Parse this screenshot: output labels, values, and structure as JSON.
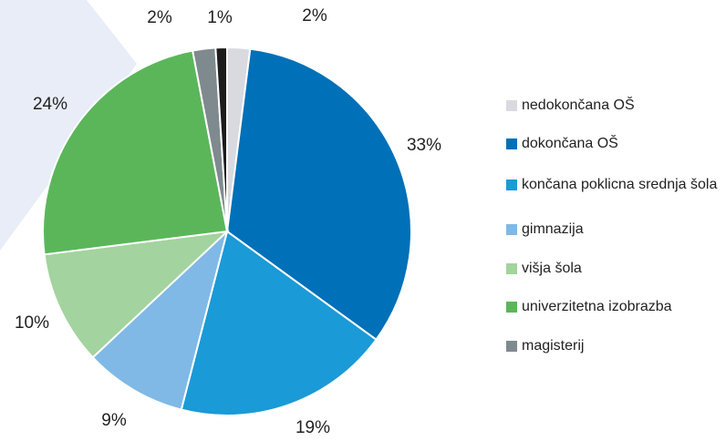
{
  "chart_data": {
    "type": "pie",
    "categories": [
      "nedokončana OŠ",
      "dokončana OŠ",
      "končana poklicna srednja šola",
      "gimnazija",
      "višja šola",
      "univerzitetna izobrazba",
      "magisterij",
      null
    ],
    "values": [
      2,
      33,
      19,
      9,
      10,
      24,
      2,
      1
    ],
    "value_labels": [
      "2%",
      "33%",
      "19%",
      "9%",
      "10%",
      "24%",
      "2%",
      "1%"
    ],
    "colors": [
      "#d9d9e0",
      "#0070b8",
      "#1a9ad6",
      "#80b9e6",
      "#a3d39e",
      "#5bb65a",
      "#7f8a8f",
      "#1c1c1c"
    ]
  }
}
